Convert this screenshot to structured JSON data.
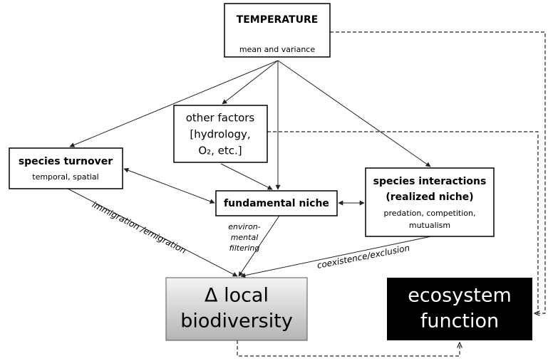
{
  "nodes": [
    {
      "id": "temperature",
      "title": "TEMPERATURE",
      "subtitle": "mean and variance"
    },
    {
      "id": "other",
      "lines": [
        "other factors",
        "[hydrology,",
        "O₂, etc.]"
      ]
    },
    {
      "id": "turnover",
      "title": "species turnover",
      "subtitle": "temporal, spatial"
    },
    {
      "id": "niche",
      "title": "fundamental niche"
    },
    {
      "id": "interactions",
      "lines": [
        "species interactions",
        "(realized niche)"
      ],
      "sublines": [
        "predation, competition,",
        "mutualism"
      ]
    },
    {
      "id": "biodiversity",
      "lines": [
        "Δ local",
        "biodiversity"
      ]
    },
    {
      "id": "ecosystem",
      "lines": [
        "ecosystem",
        "function"
      ]
    }
  ],
  "edges": [
    {
      "label": "immigration /emigration"
    },
    {
      "lines": [
        "environ-",
        "mental",
        "filtering"
      ]
    },
    {
      "label": "coexistence/exclusion"
    }
  ]
}
